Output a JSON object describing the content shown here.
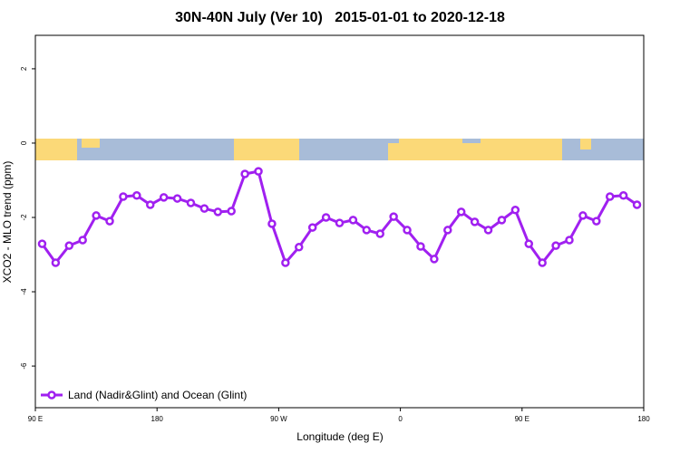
{
  "chart_data": {
    "type": "line",
    "title": "30N-40N July (Ver 10)   2015-01-01 to 2020-12-18",
    "x_label": "Longitude (deg E)",
    "y_label": "XCO2 - MLO trend (ppm)",
    "x": [
      95,
      105,
      115,
      125,
      135,
      145,
      155,
      165,
      175,
      185,
      195,
      205,
      215,
      225,
      235,
      245,
      255,
      265,
      275,
      285,
      295,
      305,
      315,
      325,
      335,
      345,
      355,
      365,
      375,
      385,
      395,
      405,
      415,
      425,
      435,
      445,
      455,
      465,
      475,
      485,
      495,
      505,
      515,
      525,
      535
    ],
    "series": [
      {
        "name": "Land (Nadir&Glint) and Ocean (Glint)",
        "color": "#a020f0",
        "values": [
          -2.71,
          -3.22,
          -2.76,
          -2.61,
          -1.95,
          -2.1,
          -1.44,
          -1.41,
          -1.66,
          -1.46,
          -1.49,
          -1.61,
          -1.76,
          -1.85,
          -1.83,
          -0.83,
          -0.76,
          -2.17,
          -3.22,
          -2.8,
          -2.27,
          -2.0,
          -2.15,
          -2.07,
          -2.34,
          -2.44,
          -1.98,
          -2.34,
          -2.78,
          -3.12,
          -2.34,
          -1.85,
          -2.12,
          -2.34,
          -2.07,
          -1.8,
          -2.71,
          -3.22,
          -2.76,
          -2.61,
          -1.95,
          -2.1,
          -1.44,
          -1.41,
          -1.66
        ]
      }
    ],
    "xlim": [
      90,
      540
    ],
    "xticks": [
      {
        "value": 90,
        "label": "90 E"
      },
      {
        "value": 180,
        "label": "180"
      },
      {
        "value": 270,
        "label": "90 W"
      },
      {
        "value": 360,
        "label": "0"
      },
      {
        "value": 450,
        "label": "90 E"
      },
      {
        "value": 540,
        "label": "180"
      }
    ],
    "ylim": [
      -7.12,
      2.9
    ],
    "yticks": [
      -6,
      -4,
      -2,
      0,
      2
    ],
    "legend": "bottom-left"
  }
}
